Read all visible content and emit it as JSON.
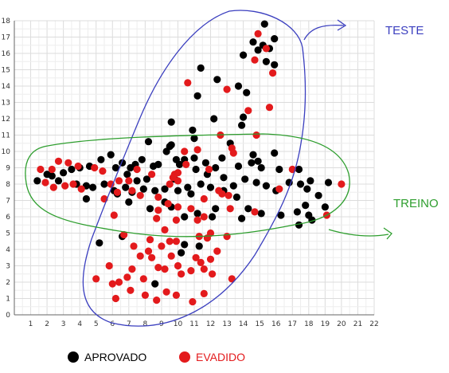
{
  "colors": {
    "aprovado": "#000000",
    "evadido": "#e31a1c",
    "teste": "#3b3fbf",
    "treino": "#2e9e2e",
    "grid": "#dcdcdc",
    "axis": "#666666"
  },
  "annotations": {
    "teste": "TESTE",
    "treino": "TREINO"
  },
  "chart_data": {
    "type": "scatter",
    "xlim": [
      0,
      22
    ],
    "ylim": [
      0,
      18
    ],
    "xticks": [
      1,
      2,
      3,
      4,
      5,
      6,
      7,
      8,
      9,
      10,
      11,
      12,
      13,
      14,
      15,
      16,
      17,
      18,
      19,
      20,
      21,
      22
    ],
    "yticks": [
      0,
      1,
      2,
      3,
      4,
      5,
      6,
      7,
      8,
      9,
      10,
      11,
      12,
      13,
      14,
      15,
      16,
      17,
      18
    ],
    "grid": true,
    "legend": "bottom",
    "series": [
      {
        "name": "APROVADO",
        "color": "#000000",
        "points": [
          [
            15.3,
            17.8
          ],
          [
            14.6,
            16.7
          ],
          [
            15.2,
            16.5
          ],
          [
            15.9,
            16.9
          ],
          [
            15.6,
            16.3
          ],
          [
            14.9,
            16.2
          ],
          [
            14.0,
            15.9
          ],
          [
            15.4,
            15.5
          ],
          [
            15.9,
            15.3
          ],
          [
            11.4,
            15.1
          ],
          [
            12.4,
            14.4
          ],
          [
            13.7,
            14.0
          ],
          [
            14.2,
            13.6
          ],
          [
            11.2,
            13.4
          ],
          [
            14.0,
            12.1
          ],
          [
            9.6,
            11.8
          ],
          [
            13.9,
            11.6
          ],
          [
            12.2,
            12.0
          ],
          [
            10.9,
            11.3
          ],
          [
            11.0,
            10.8
          ],
          [
            8.2,
            10.6
          ],
          [
            13.2,
            10.5
          ],
          [
            9.5,
            10.3
          ],
          [
            9.3,
            10.0
          ],
          [
            14.6,
            9.8
          ],
          [
            15.9,
            9.9
          ],
          [
            14.5,
            9.3
          ],
          [
            12.7,
            9.6
          ],
          [
            11.7,
            9.3
          ],
          [
            12.3,
            9.0
          ],
          [
            13.7,
            9.1
          ],
          [
            14.9,
            9.4
          ],
          [
            10.4,
            9.5
          ],
          [
            9.9,
            9.5
          ],
          [
            8.8,
            9.2
          ],
          [
            8.5,
            9.1
          ],
          [
            7.8,
            9.5
          ],
          [
            7.4,
            9.2
          ],
          [
            7.1,
            9.0
          ],
          [
            6.6,
            9.3
          ],
          [
            6.2,
            9.0
          ],
          [
            5.3,
            9.5
          ],
          [
            4.6,
            9.1
          ],
          [
            4.0,
            9.0
          ],
          [
            3.5,
            8.9
          ],
          [
            3.0,
            8.7
          ],
          [
            2.3,
            8.5
          ],
          [
            1.4,
            8.2
          ],
          [
            2.0,
            8.6
          ],
          [
            2.7,
            8.2
          ],
          [
            3.8,
            8.0
          ],
          [
            4.4,
            7.9
          ],
          [
            4.8,
            7.8
          ],
          [
            5.5,
            8.0
          ],
          [
            6.1,
            7.6
          ],
          [
            6.8,
            7.8
          ],
          [
            7.2,
            7.5
          ],
          [
            7.9,
            7.7
          ],
          [
            8.6,
            7.6
          ],
          [
            9.2,
            7.7
          ],
          [
            10.0,
            7.6
          ],
          [
            10.8,
            7.4
          ],
          [
            11.4,
            8.0
          ],
          [
            12.0,
            7.8
          ],
          [
            12.8,
            7.6
          ],
          [
            13.4,
            7.9
          ],
          [
            14.1,
            8.3
          ],
          [
            14.8,
            8.1
          ],
          [
            15.4,
            7.9
          ],
          [
            16.0,
            7.6
          ],
          [
            16.8,
            8.1
          ],
          [
            17.5,
            8.0
          ],
          [
            17.4,
            8.9
          ],
          [
            18.1,
            8.2
          ],
          [
            19.2,
            8.1
          ],
          [
            17.9,
            7.7
          ],
          [
            18.6,
            7.3
          ],
          [
            17.8,
            6.7
          ],
          [
            19.0,
            6.6
          ],
          [
            18.0,
            6.1
          ],
          [
            18.2,
            5.8
          ],
          [
            17.3,
            6.3
          ],
          [
            16.3,
            6.1
          ],
          [
            17.4,
            5.5
          ],
          [
            15.1,
            6.2
          ],
          [
            14.3,
            6.5
          ],
          [
            13.9,
            5.9
          ],
          [
            12.1,
            6.0
          ],
          [
            11.2,
            6.2
          ],
          [
            10.4,
            6.0
          ],
          [
            9.6,
            6.6
          ],
          [
            9.2,
            6.9
          ],
          [
            8.3,
            6.5
          ],
          [
            7.0,
            6.9
          ],
          [
            6.3,
            7.4
          ],
          [
            4.4,
            7.1
          ],
          [
            5.9,
            9.8
          ],
          [
            6.9,
            8.6
          ],
          [
            7.5,
            8.2
          ],
          [
            8.1,
            8.3
          ],
          [
            9.8,
            8.3
          ],
          [
            11.1,
            8.9
          ],
          [
            11.8,
            8.6
          ],
          [
            12.8,
            8.4
          ],
          [
            15.1,
            9.0
          ],
          [
            16.2,
            8.9
          ],
          [
            10.1,
            9.2
          ],
          [
            11.0,
            9.6
          ],
          [
            9.6,
            10.4
          ],
          [
            10.6,
            7.8
          ],
          [
            12.3,
            6.5
          ],
          [
            13.6,
            7.2
          ],
          [
            10.4,
            4.3
          ],
          [
            5.2,
            4.4
          ],
          [
            8.6,
            1.9
          ],
          [
            10.2,
            3.8
          ],
          [
            11.3,
            4.2
          ],
          [
            6.6,
            4.8
          ]
        ]
      },
      {
        "name": "EVADIDO",
        "color": "#e31a1c",
        "points": [
          [
            14.9,
            17.2
          ],
          [
            15.4,
            16.3
          ],
          [
            15.8,
            14.8
          ],
          [
            14.7,
            15.6
          ],
          [
            13.0,
            13.8
          ],
          [
            10.6,
            14.2
          ],
          [
            14.3,
            12.5
          ],
          [
            15.6,
            12.7
          ],
          [
            12.6,
            11.0
          ],
          [
            14.8,
            11.0
          ],
          [
            11.2,
            10.1
          ],
          [
            13.3,
            10.2
          ],
          [
            13.4,
            9.9
          ],
          [
            10.5,
            9.2
          ],
          [
            11.9,
            8.9
          ],
          [
            9.8,
            8.6
          ],
          [
            10.0,
            8.2
          ],
          [
            9.5,
            8.0
          ],
          [
            8.4,
            8.6
          ],
          [
            7.5,
            8.9
          ],
          [
            6.4,
            8.2
          ],
          [
            5.4,
            8.8
          ],
          [
            4.9,
            9.0
          ],
          [
            3.9,
            9.1
          ],
          [
            3.3,
            9.3
          ],
          [
            2.7,
            9.4
          ],
          [
            2.3,
            8.9
          ],
          [
            1.6,
            8.9
          ],
          [
            1.9,
            8.1
          ],
          [
            2.4,
            7.8
          ],
          [
            3.1,
            7.9
          ],
          [
            3.6,
            8.0
          ],
          [
            4.1,
            7.7
          ],
          [
            5.5,
            7.1
          ],
          [
            6.3,
            7.5
          ],
          [
            7.7,
            7.3
          ],
          [
            8.8,
            7.2
          ],
          [
            9.4,
            6.8
          ],
          [
            10.0,
            6.6
          ],
          [
            10.8,
            6.5
          ],
          [
            11.6,
            7.1
          ],
          [
            12.5,
            7.6
          ],
          [
            13.1,
            7.3
          ],
          [
            14.7,
            6.3
          ],
          [
            16.2,
            7.7
          ],
          [
            17.0,
            8.9
          ],
          [
            19.1,
            6.1
          ],
          [
            20.0,
            8.0
          ],
          [
            11.2,
            5.8
          ],
          [
            11.6,
            6.0
          ],
          [
            12.0,
            5.0
          ],
          [
            11.3,
            4.8
          ],
          [
            11.8,
            4.7
          ],
          [
            13.0,
            4.8
          ],
          [
            12.4,
            3.9
          ],
          [
            12.0,
            3.4
          ],
          [
            11.4,
            3.2
          ],
          [
            11.6,
            2.8
          ],
          [
            12.1,
            2.5
          ],
          [
            10.8,
            2.7
          ],
          [
            10.2,
            2.5
          ],
          [
            11.1,
            3.5
          ],
          [
            10.0,
            3.0
          ],
          [
            9.5,
            4.5
          ],
          [
            9.9,
            4.5
          ],
          [
            9.0,
            4.2
          ],
          [
            8.2,
            3.9
          ],
          [
            7.7,
            3.6
          ],
          [
            8.4,
            3.5
          ],
          [
            8.8,
            2.9
          ],
          [
            9.6,
            3.6
          ],
          [
            9.2,
            2.8
          ],
          [
            7.9,
            2.2
          ],
          [
            7.2,
            2.8
          ],
          [
            6.9,
            2.3
          ],
          [
            6.4,
            2.0
          ],
          [
            6.0,
            1.9
          ],
          [
            7.1,
            1.5
          ],
          [
            8.0,
            1.2
          ],
          [
            8.7,
            0.9
          ],
          [
            9.3,
            1.4
          ],
          [
            9.9,
            1.2
          ],
          [
            10.9,
            0.8
          ],
          [
            11.6,
            1.3
          ],
          [
            6.2,
            1.0
          ],
          [
            5.8,
            3.0
          ],
          [
            5.0,
            2.2
          ],
          [
            6.7,
            4.9
          ],
          [
            7.3,
            4.2
          ],
          [
            8.3,
            4.6
          ],
          [
            9.2,
            5.2
          ],
          [
            9.9,
            5.8
          ],
          [
            8.7,
            5.9
          ],
          [
            8.8,
            6.4
          ],
          [
            6.1,
            6.1
          ],
          [
            5.9,
            8.0
          ],
          [
            7.2,
            7.6
          ],
          [
            7.0,
            8.2
          ],
          [
            13.3,
            2.2
          ],
          [
            10.4,
            10.0
          ],
          [
            10.0,
            8.7
          ],
          [
            9.7,
            8.4
          ],
          [
            12.7,
            7.4
          ],
          [
            13.2,
            6.5
          ]
        ]
      }
    ]
  },
  "legend": {
    "aprovado_label": "APROVADO",
    "evadido_label": "EVADIDO"
  }
}
